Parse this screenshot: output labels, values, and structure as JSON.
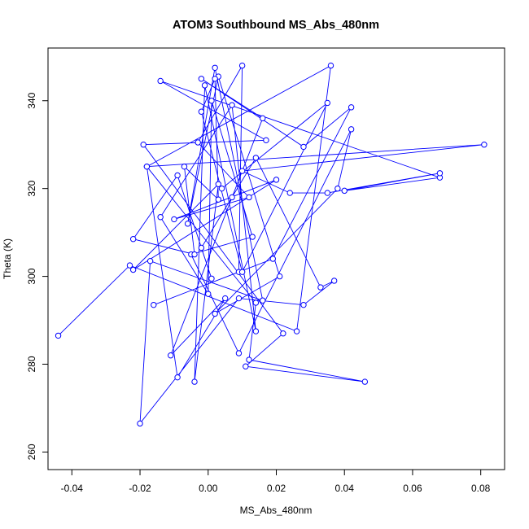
{
  "chart_data": {
    "type": "line",
    "title": "ATOM3 Southbound MS_Abs_480nm",
    "xlabel": "MS_Abs_480nm",
    "ylabel": "Theta (K)",
    "xlim": [
      -0.047,
      0.087
    ],
    "ylim": [
      256,
      352
    ],
    "xticks": [
      -0.04,
      -0.02,
      0.0,
      0.02,
      0.04,
      0.06,
      0.08
    ],
    "xtick_labels": [
      "-0.04",
      "-0.02",
      "0.00",
      "0.02",
      "0.04",
      "0.06",
      "0.08"
    ],
    "yticks": [
      260,
      280,
      300,
      320,
      340
    ],
    "ytick_labels": [
      "260",
      "280",
      "300",
      "320",
      "340"
    ],
    "grid": false,
    "markers": "open-circle",
    "colors": {
      "series": "#0000ff",
      "axis": "#000000",
      "background": "#ffffff"
    },
    "series": [
      {
        "x": [
          -0.044,
          -0.023,
          0.026,
          0.036,
          -0.018,
          0.014,
          0.012,
          0.046,
          0.011,
          0.022,
          -0.019,
          0.017,
          -0.014,
          0.068,
          0.04,
          0.068,
          0.035,
          0.024,
          0.01,
          0.081,
          -0.018,
          -0.009,
          0.005,
          -0.011,
          0.007,
          0.016,
          -0.002,
          0.028,
          0.042,
          0.019,
          -0.016,
          0.009,
          0.01,
          -0.003,
          0.012,
          -0.01,
          0.02,
          -0.022,
          0.003,
          -0.004,
          -0.001,
          0.014,
          0.007,
          -0.014,
          0.0,
          0.001,
          0.013,
          -0.005,
          0.009,
          0.042,
          0.038,
          0.002,
          0.021,
          0.003,
          -0.006,
          0.002,
          0.016,
          -0.017,
          -0.02,
          0.009,
          0.028,
          0.037,
          0.033,
          0.014,
          -0.002,
          0.001,
          -0.009,
          -0.022,
          -0.004,
          -0.007,
          0.003,
          0.002,
          -0.002,
          0.01,
          0.035,
          0.004
        ],
        "y": [
          286.5,
          302.5,
          287.5,
          348.0,
          325.0,
          294.0,
          281.0,
          276.0,
          279.5,
          287.0,
          330.0,
          331.0,
          344.5,
          322.5,
          319.5,
          323.5,
          319.0,
          319.0,
          324.0,
          330.0,
          325.0,
          277.0,
          295.0,
          282.0,
          318.0,
          336.0,
          345.0,
          329.5,
          338.5,
          304.0,
          293.5,
          301.0,
          348.0,
          330.5,
          318.0,
          313.0,
          322.0,
          301.5,
          321.0,
          276.0,
          343.5,
          287.5,
          339.0,
          313.5,
          296.0,
          340.0,
          309.0,
          305.0,
          282.5,
          333.5,
          320.0,
          291.5,
          300.0,
          345.5,
          312.0,
          347.5,
          294.5,
          303.5,
          266.5,
          295.0,
          293.5,
          299.0,
          297.5,
          327.0,
          306.5,
          299.5,
          323.0,
          308.5,
          305.0,
          325.0,
          317.5,
          345.0,
          337.5,
          301.0,
          339.5,
          320.0
        ]
      }
    ]
  }
}
